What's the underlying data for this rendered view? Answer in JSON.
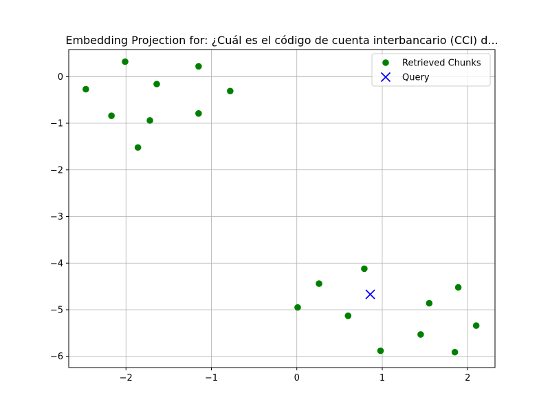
{
  "chart_data": {
    "type": "scatter",
    "title": "Embedding Projection for: ¿Cuál es el código de cuenta interbancario (CCI) d...",
    "xlabel": "",
    "ylabel": "",
    "xlim": [
      -2.67,
      2.32
    ],
    "ylim": [
      -6.24,
      0.58
    ],
    "xticks": [
      -2,
      -1,
      0,
      1,
      2
    ],
    "xtick_labels": [
      "−2",
      "−1",
      "0",
      "1",
      "2"
    ],
    "yticks": [
      0,
      -1,
      -2,
      -3,
      -4,
      -5,
      -6
    ],
    "ytick_labels": [
      "0",
      "−1",
      "−2",
      "−3",
      "−4",
      "−5",
      "−6"
    ],
    "grid": true,
    "legend_position": "top-right",
    "series": [
      {
        "name": "Retrieved Chunks",
        "marker": "circle",
        "color": "#008000",
        "points": [
          {
            "x": -2.47,
            "y": -0.27
          },
          {
            "x": -2.01,
            "y": 0.32
          },
          {
            "x": -2.17,
            "y": -0.84
          },
          {
            "x": -1.64,
            "y": -0.16
          },
          {
            "x": -1.72,
            "y": -0.94
          },
          {
            "x": -1.86,
            "y": -1.52
          },
          {
            "x": -1.15,
            "y": 0.22
          },
          {
            "x": -1.15,
            "y": -0.79
          },
          {
            "x": -0.78,
            "y": -0.31
          },
          {
            "x": 0.01,
            "y": -4.95
          },
          {
            "x": 0.26,
            "y": -4.44
          },
          {
            "x": 0.6,
            "y": -5.13
          },
          {
            "x": 0.79,
            "y": -4.12
          },
          {
            "x": 0.98,
            "y": -5.88
          },
          {
            "x": 1.45,
            "y": -5.53
          },
          {
            "x": 1.55,
            "y": -4.86
          },
          {
            "x": 1.85,
            "y": -5.91
          },
          {
            "x": 1.89,
            "y": -4.52
          },
          {
            "x": 2.1,
            "y": -5.34
          }
        ]
      },
      {
        "name": "Query",
        "marker": "x",
        "color": "#0000ff",
        "points": [
          {
            "x": 0.86,
            "y": -4.67
          }
        ]
      }
    ]
  }
}
